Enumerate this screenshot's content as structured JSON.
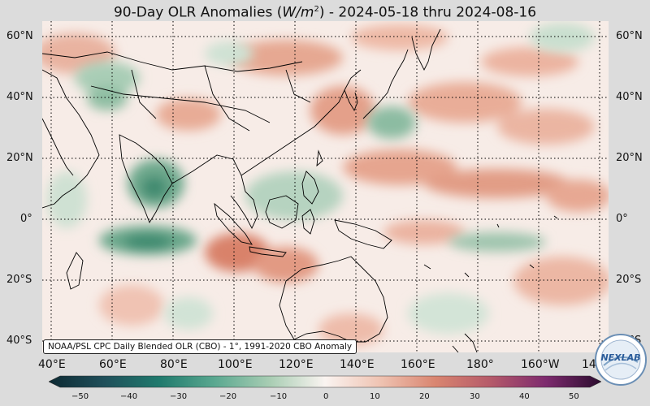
{
  "title": {
    "prefix": "90-Day OLR Anomalies (",
    "unit_base": "W/m",
    "unit_exp": "2",
    "suffix": ") - 2024-05-18 thru 2024-08-16"
  },
  "credit": "NOAA/PSL CPC Daily Blended OLR (CBO) - 1°, 1991-2020 CBO Anomaly",
  "logo_text": "NEXLAB",
  "lat_labels": [
    "60°N",
    "40°N",
    "20°N",
    "0°",
    "20°S",
    "40°S"
  ],
  "lon_labels": [
    "40°E",
    "60°E",
    "80°E",
    "100°E",
    "120°E",
    "140°E",
    "160°E",
    "180°",
    "160°W",
    "14"
  ],
  "colorbar": {
    "ticks": [
      "−50",
      "−40",
      "−30",
      "−20",
      "−10",
      "0",
      "10",
      "20",
      "30",
      "40",
      "50"
    ],
    "range": [
      -50,
      50
    ]
  },
  "colors": {
    "ocean_base": "#f6ece8",
    "positive": "#d98b74",
    "negative": "#5aa08a",
    "coast": "#000000"
  }
}
